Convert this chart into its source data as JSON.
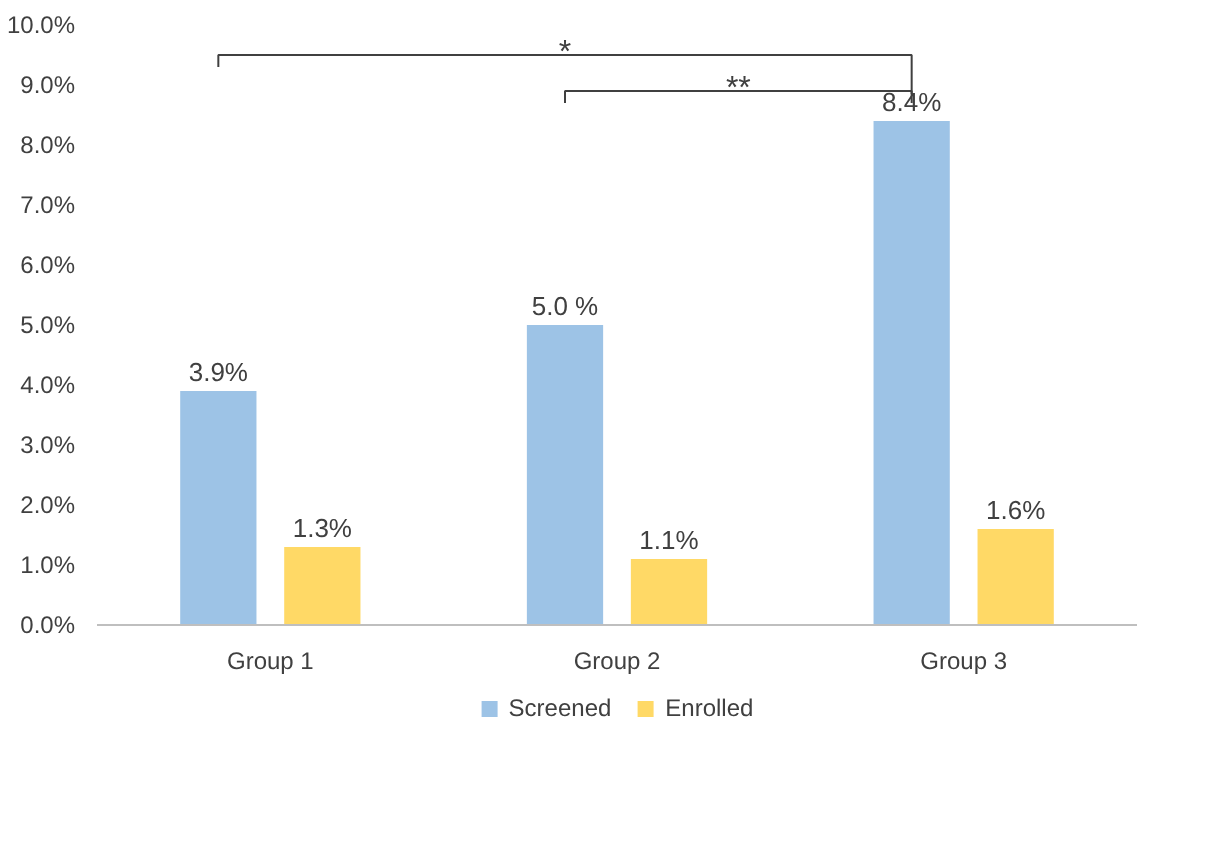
{
  "chart_data": {
    "type": "bar",
    "categories": [
      "Group 1",
      "Group 2",
      "Group 3"
    ],
    "series": [
      {
        "name": "Screened",
        "color": "#9dc3e6",
        "values": [
          3.9,
          5.0,
          8.4
        ],
        "value_labels": [
          "3.9%",
          "5.0 %",
          "8.4%"
        ]
      },
      {
        "name": "Enrolled",
        "color": "#ffd966",
        "values": [
          1.3,
          1.1,
          1.6
        ],
        "value_labels": [
          "1.3%",
          "1.1%",
          "1.6%"
        ]
      }
    ],
    "ylim": [
      0,
      10
    ],
    "yticks": [
      {
        "value": 0,
        "label": "0.0%"
      },
      {
        "value": 1,
        "label": "1.0%"
      },
      {
        "value": 2,
        "label": "2.0%"
      },
      {
        "value": 3,
        "label": "3.0%"
      },
      {
        "value": 4,
        "label": "4.0%"
      },
      {
        "value": 5,
        "label": "5.0%"
      },
      {
        "value": 6,
        "label": "6.0%"
      },
      {
        "value": 7,
        "label": "7.0%"
      },
      {
        "value": 8,
        "label": "8.0%"
      },
      {
        "value": 9,
        "label": "9.0%"
      },
      {
        "value": 10,
        "label": "10.0%"
      }
    ],
    "annotations": [
      "*",
      "**"
    ],
    "legend": "bottom",
    "grid": false
  }
}
